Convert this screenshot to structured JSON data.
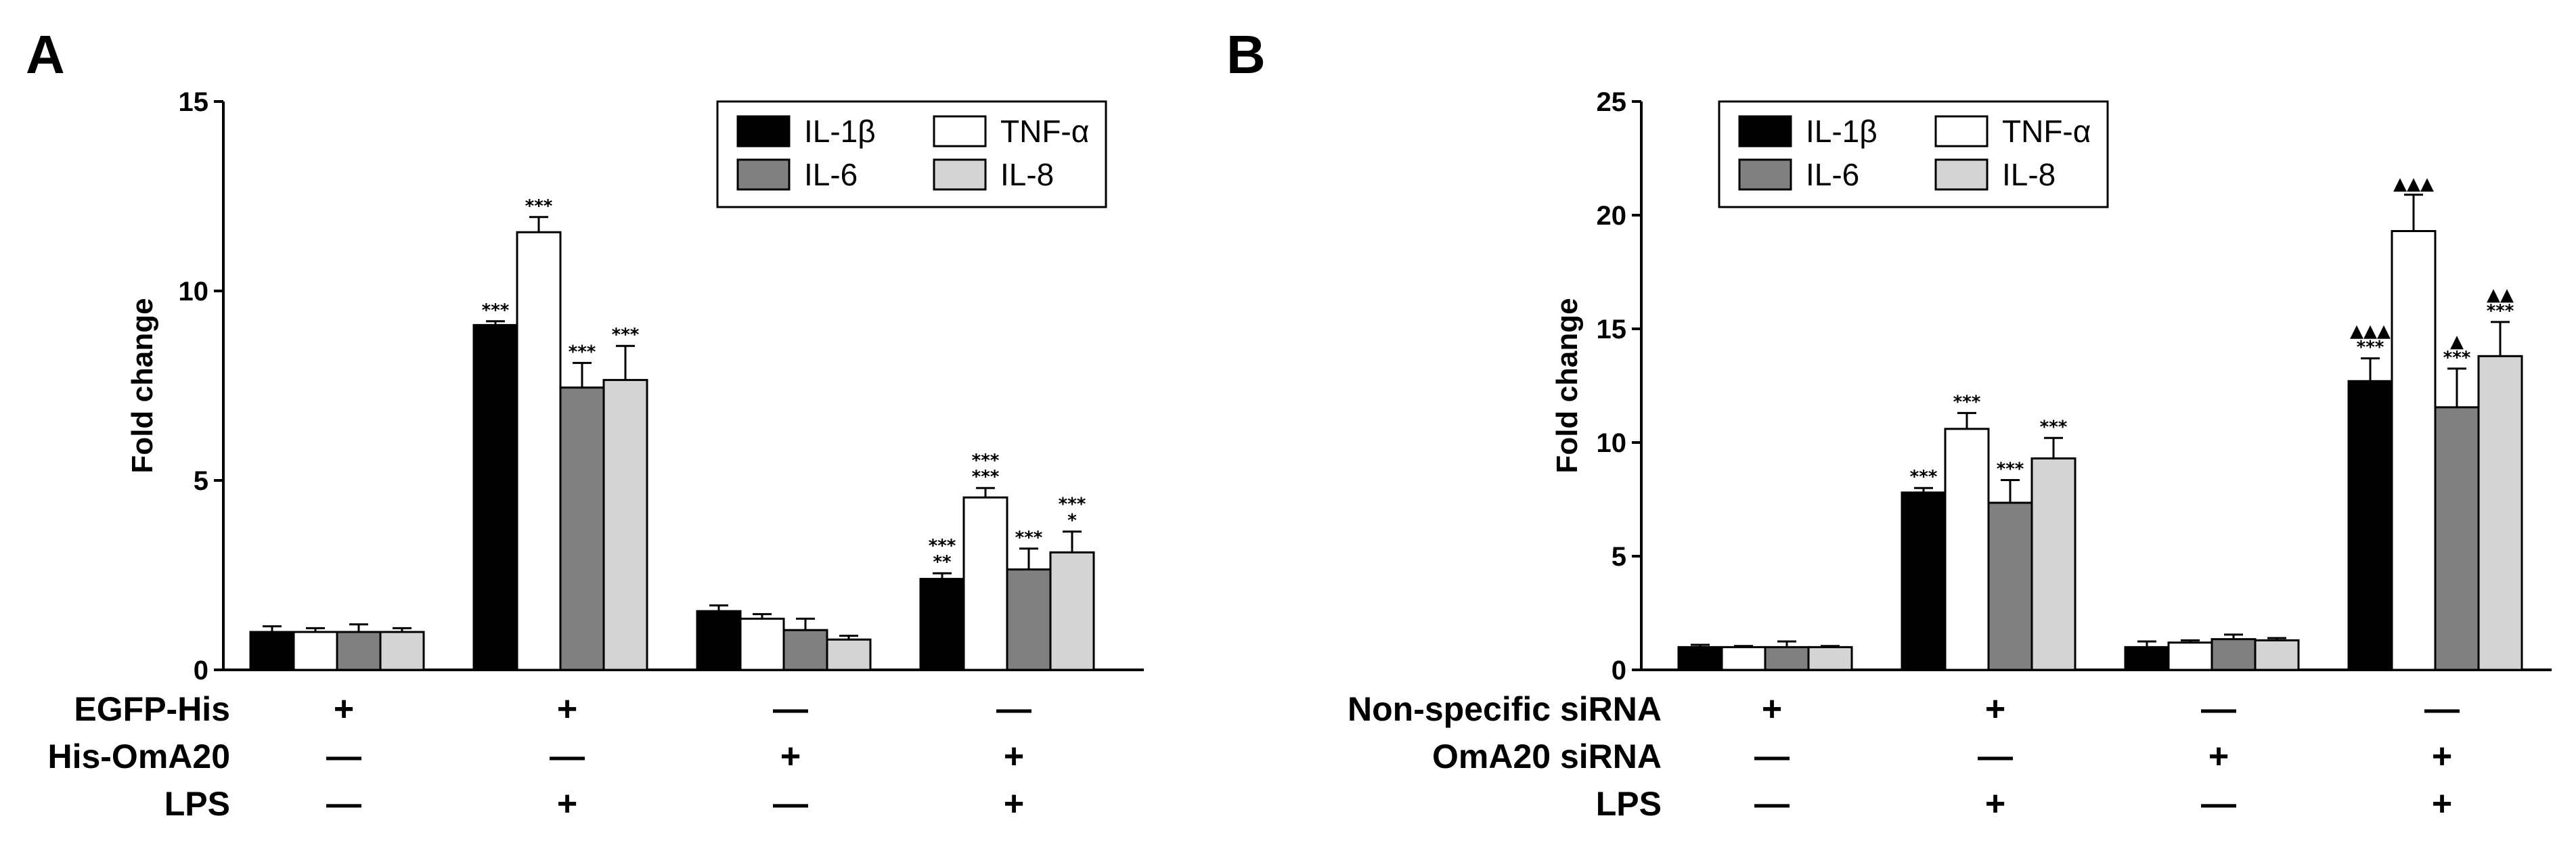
{
  "chart_data": [
    {
      "type": "bar",
      "panel": "A",
      "ylabel": "Fold change",
      "ylim": [
        0,
        15
      ],
      "yticks": [
        0,
        5,
        10,
        15
      ],
      "groups": 4,
      "series": [
        {
          "name": "IL-1β",
          "color": "#000000",
          "values": [
            1.0,
            9.1,
            1.55,
            2.4
          ],
          "errors": [
            0.15,
            0.1,
            0.15,
            0.15
          ]
        },
        {
          "name": "TNF-α",
          "color": "#ffffff",
          "values": [
            1.0,
            11.55,
            1.35,
            4.55
          ],
          "errors": [
            0.1,
            0.4,
            0.12,
            0.25
          ]
        },
        {
          "name": "IL-6",
          "color": "#808080",
          "values": [
            1.0,
            7.45,
            1.05,
            2.65
          ],
          "errors": [
            0.2,
            0.65,
            0.3,
            0.55
          ]
        },
        {
          "name": "IL-8",
          "color": "#d4d4d4",
          "values": [
            1.0,
            7.65,
            0.8,
            3.1
          ],
          "errors": [
            0.1,
            0.9,
            0.1,
            0.55
          ]
        }
      ],
      "annotations": [
        [
          "",
          "",
          "",
          ""
        ],
        [
          "***",
          "***",
          "***",
          "***"
        ],
        [
          "",
          "",
          "",
          ""
        ],
        [
          [
            "**",
            "***"
          ],
          [
            "***",
            "***"
          ],
          [
            "***"
          ],
          [
            "*",
            "***"
          ]
        ]
      ],
      "legend": {
        "position": "top-right",
        "layout": [
          [
            "IL-1β",
            "TNF-α"
          ],
          [
            "IL-6",
            "IL-8"
          ]
        ]
      },
      "conditions": [
        {
          "label": "EGFP-His",
          "values": [
            "+",
            "+",
            "—",
            "—"
          ]
        },
        {
          "label": "His-OmA20",
          "values": [
            "—",
            "—",
            "+",
            "+"
          ]
        },
        {
          "label": "LPS",
          "values": [
            "—",
            "+",
            "—",
            "+"
          ]
        }
      ]
    },
    {
      "type": "bar",
      "panel": "B",
      "ylabel": "Fold change",
      "ylim": [
        0,
        25
      ],
      "yticks": [
        0,
        5,
        10,
        15,
        20,
        25
      ],
      "groups": 4,
      "series": [
        {
          "name": "IL-1β",
          "color": "#000000",
          "values": [
            1.0,
            7.8,
            1.0,
            12.7
          ],
          "errors": [
            0.1,
            0.2,
            0.25,
            1.0
          ]
        },
        {
          "name": "TNF-α",
          "color": "#ffffff",
          "values": [
            1.0,
            10.6,
            1.2,
            19.3
          ],
          "errors": [
            0.05,
            0.7,
            0.1,
            1.6
          ]
        },
        {
          "name": "IL-6",
          "color": "#808080",
          "values": [
            1.0,
            7.35,
            1.35,
            11.55
          ],
          "errors": [
            0.25,
            1.0,
            0.2,
            1.7
          ]
        },
        {
          "name": "IL-8",
          "color": "#d4d4d4",
          "values": [
            1.0,
            9.3,
            1.3,
            13.8
          ],
          "errors": [
            0.05,
            0.9,
            0.1,
            1.5
          ]
        }
      ],
      "annotations": [
        [
          "",
          "",
          "",
          ""
        ],
        [
          "***",
          "***",
          "***",
          "***"
        ],
        [
          "",
          "",
          "",
          ""
        ],
        [
          [
            "***",
            "▲▲▲"
          ],
          [
            "▲▲▲"
          ],
          [
            "***",
            "▲"
          ],
          [
            "***",
            "▲▲"
          ]
        ]
      ],
      "legend": {
        "position": "top-left",
        "layout": [
          [
            "IL-1β",
            "TNF-α"
          ],
          [
            "IL-6",
            "IL-8"
          ]
        ]
      },
      "conditions": [
        {
          "label": "Non-specific siRNA",
          "values": [
            "+",
            "+",
            "—",
            "—"
          ]
        },
        {
          "label": "OmA20 siRNA",
          "values": [
            "—",
            "—",
            "+",
            "+"
          ]
        },
        {
          "label": "LPS",
          "values": [
            "—",
            "+",
            "—",
            "+"
          ]
        }
      ]
    }
  ]
}
